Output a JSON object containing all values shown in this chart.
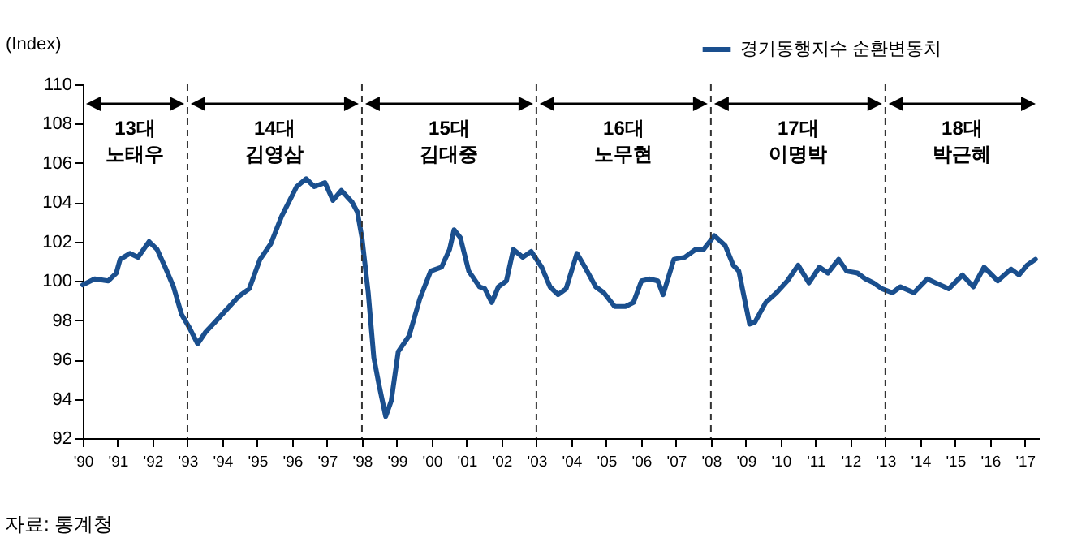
{
  "chart_data": {
    "type": "line",
    "ylabel": "(Index)",
    "legend": "top right",
    "marker": "none",
    "line_style": "solid",
    "xlim": [
      1990,
      2017.4
    ],
    "ylim": [
      92,
      110
    ],
    "yticks": [
      92,
      94,
      96,
      98,
      100,
      102,
      104,
      106,
      108,
      110
    ],
    "xticks": [
      {
        "value": 1990,
        "label": "'90"
      },
      {
        "value": 1991,
        "label": "'91"
      },
      {
        "value": 1992,
        "label": "'92"
      },
      {
        "value": 1993,
        "label": "'93"
      },
      {
        "value": 1994,
        "label": "'94"
      },
      {
        "value": 1995,
        "label": "'95"
      },
      {
        "value": 1996,
        "label": "'96"
      },
      {
        "value": 1997,
        "label": "'97"
      },
      {
        "value": 1998,
        "label": "'98"
      },
      {
        "value": 1999,
        "label": "'99"
      },
      {
        "value": 2000,
        "label": "'00"
      },
      {
        "value": 2001,
        "label": "'01"
      },
      {
        "value": 2002,
        "label": "'02"
      },
      {
        "value": 2003,
        "label": "'03"
      },
      {
        "value": 2004,
        "label": "'04"
      },
      {
        "value": 2005,
        "label": "'05"
      },
      {
        "value": 2006,
        "label": "'06"
      },
      {
        "value": 2007,
        "label": "'07"
      },
      {
        "value": 2008,
        "label": "'08"
      },
      {
        "value": 2009,
        "label": "'09"
      },
      {
        "value": 2010,
        "label": "'10"
      },
      {
        "value": 2011,
        "label": "'11"
      },
      {
        "value": 2012,
        "label": "'12"
      },
      {
        "value": 2013,
        "label": "'13"
      },
      {
        "value": 2014,
        "label": "'14"
      },
      {
        "value": 2015,
        "label": "'15"
      },
      {
        "value": 2016,
        "label": "'16"
      },
      {
        "value": 2017,
        "label": "'17"
      }
    ],
    "x": [
      1990.0,
      1990.34,
      1990.73,
      1990.96,
      1991.07,
      1991.35,
      1991.58,
      1991.9,
      1992.13,
      1992.36,
      1992.6,
      1992.83,
      1993.06,
      1993.29,
      1993.52,
      1993.84,
      1994.15,
      1994.46,
      1994.77,
      1995.08,
      1995.39,
      1995.7,
      1995.93,
      1996.13,
      1996.4,
      1996.63,
      1996.94,
      1997.17,
      1997.41,
      1997.72,
      1997.87,
      1998.0,
      1998.18,
      1998.34,
      1998.49,
      1998.68,
      1998.84,
      1999.04,
      1999.35,
      1999.66,
      1999.97,
      2000.28,
      2000.51,
      2000.64,
      2000.82,
      2001.06,
      2001.37,
      2001.52,
      2001.72,
      2001.91,
      2002.14,
      2002.34,
      2002.61,
      2002.85,
      2003.15,
      2003.39,
      2003.62,
      2003.85,
      2004.16,
      2004.39,
      2004.7,
      2004.93,
      2005.24,
      2005.55,
      2005.78,
      2006.01,
      2006.25,
      2006.48,
      2006.63,
      2006.94,
      2007.25,
      2007.56,
      2007.79,
      2008.1,
      2008.41,
      2008.64,
      2008.8,
      2008.95,
      2009.11,
      2009.26,
      2009.57,
      2009.88,
      2010.19,
      2010.5,
      2010.81,
      2011.11,
      2011.35,
      2011.66,
      2011.89,
      2012.2,
      2012.43,
      2012.66,
      2012.9,
      2013.2,
      2013.43,
      2013.82,
      2014.2,
      2014.44,
      2014.82,
      2015.21,
      2015.52,
      2015.83,
      2016.22,
      2016.6,
      2016.83,
      2017.06,
      2017.3
    ],
    "series": [
      {
        "name": "경기동행지수 순환변동치",
        "color": "#1a4f8e",
        "values": [
          99.8,
          100.1,
          100.0,
          100.4,
          101.1,
          101.4,
          101.2,
          102.0,
          101.6,
          100.7,
          99.7,
          98.3,
          97.6,
          96.8,
          97.4,
          98.0,
          98.6,
          99.2,
          99.6,
          101.1,
          101.9,
          103.3,
          104.1,
          104.8,
          105.2,
          104.8,
          105.0,
          104.1,
          104.6,
          104.0,
          103.5,
          102.2,
          99.4,
          96.1,
          94.7,
          93.1,
          93.9,
          96.4,
          97.2,
          99.1,
          100.5,
          100.7,
          101.6,
          102.6,
          102.2,
          100.5,
          99.7,
          99.6,
          98.9,
          99.7,
          100.0,
          101.6,
          101.2,
          101.5,
          100.7,
          99.7,
          99.3,
          99.6,
          101.4,
          100.7,
          99.7,
          99.4,
          98.7,
          98.7,
          98.9,
          100.0,
          100.1,
          100.0,
          99.3,
          101.1,
          101.2,
          101.6,
          101.6,
          102.3,
          101.8,
          100.8,
          100.5,
          99.2,
          97.8,
          97.9,
          98.9,
          99.4,
          100.0,
          100.8,
          99.9,
          100.7,
          100.4,
          101.1,
          100.5,
          100.4,
          100.1,
          99.9,
          99.6,
          99.4,
          99.7,
          99.4,
          100.1,
          99.9,
          99.6,
          100.3,
          99.7,
          100.7,
          100.0,
          100.6,
          100.3,
          100.8,
          101.1
        ]
      }
    ],
    "ref_lines": [
      {
        "axis": "x",
        "value": 1993,
        "line_style": "dashed"
      },
      {
        "axis": "x",
        "value": 1998,
        "line_style": "dashed"
      },
      {
        "axis": "x",
        "value": 2003,
        "line_style": "dashed"
      },
      {
        "axis": "x",
        "value": 2008,
        "line_style": "dashed"
      },
      {
        "axis": "x",
        "value": 2013,
        "line_style": "dashed"
      }
    ],
    "annotations": [
      "13대\n노태우",
      "14대\n김영삼",
      "15대\n김대중",
      "16대\n노무현",
      "17대\n이명박",
      "18대\n박근혜",
      "자료: 통계청"
    ]
  }
}
